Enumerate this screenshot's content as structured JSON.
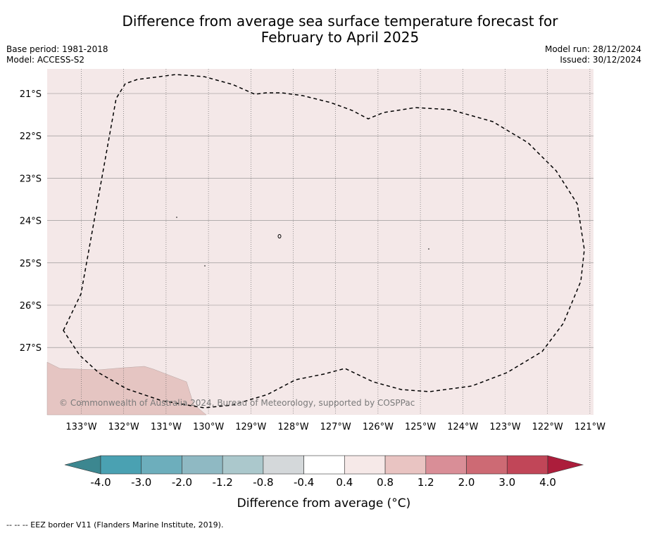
{
  "header": {
    "title_line1": "Difference from average sea surface temperature forecast for",
    "title_line2": "February to April 2025",
    "base_period": "Base period: 1981-2018",
    "model": "Model: ACCESS-S2",
    "model_run": "Model run: 28/12/2024",
    "issued": "Issued: 30/12/2024"
  },
  "map": {
    "background_color": "#f4e8e8",
    "land_color": "#e5c5c2",
    "lon_ticks": [
      "133°W",
      "132°W",
      "131°W",
      "130°W",
      "129°W",
      "128°W",
      "127°W",
      "126°W",
      "125°W",
      "124°W",
      "123°W",
      "122°W",
      "121°W"
    ],
    "lat_ticks": [
      "21°S",
      "22°S",
      "23°S",
      "24°S",
      "25°S",
      "26°S",
      "27°S"
    ],
    "copyright": "© Commonwealth of Australia 2024, Bureau of Meteorology, supported by COSPPac"
  },
  "colorbar": {
    "label": "Difference from average (°C)",
    "tick_labels": [
      "-4.0",
      "-3.0",
      "-2.0",
      "-1.2",
      "-0.8",
      "-0.4",
      "0.4",
      "0.8",
      "1.2",
      "2.0",
      "3.0",
      "4.0"
    ],
    "colors": [
      "#4aa1b2",
      "#6daebc",
      "#8fb9c3",
      "#abc8cc",
      "#d4d8da",
      "#ffffff",
      "#f6e9e8",
      "#e9c4c2",
      "#d98e97",
      "#cd6a74",
      "#c14658"
    ],
    "under_color": "#3c8790",
    "over_color": "#ac1d3b"
  },
  "footnote": "--  --  -- EEZ border V11 (Flanders Marine Institute, 2019)."
}
